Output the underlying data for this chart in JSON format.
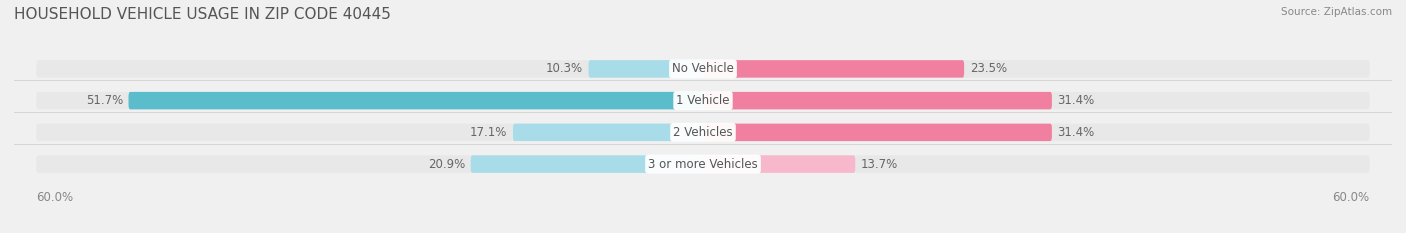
{
  "title": "HOUSEHOLD VEHICLE USAGE IN ZIP CODE 40445",
  "source": "Source: ZipAtlas.com",
  "categories": [
    "No Vehicle",
    "1 Vehicle",
    "2 Vehicles",
    "3 or more Vehicles"
  ],
  "owner_values": [
    10.3,
    51.7,
    17.1,
    20.9
  ],
  "renter_values": [
    23.5,
    31.4,
    31.4,
    13.7
  ],
  "owner_color": "#5bbccc",
  "renter_color": "#f07fa0",
  "owner_color_light": "#a8dce8",
  "renter_color_light": "#f7b8cc",
  "bg_color": "#f0f0f0",
  "bar_bg_color": "#e8e8e8",
  "xlim": 60.0,
  "axis_label_left": "60.0%",
  "axis_label_right": "60.0%",
  "title_fontsize": 11,
  "label_fontsize": 8.5,
  "category_fontsize": 8.5
}
